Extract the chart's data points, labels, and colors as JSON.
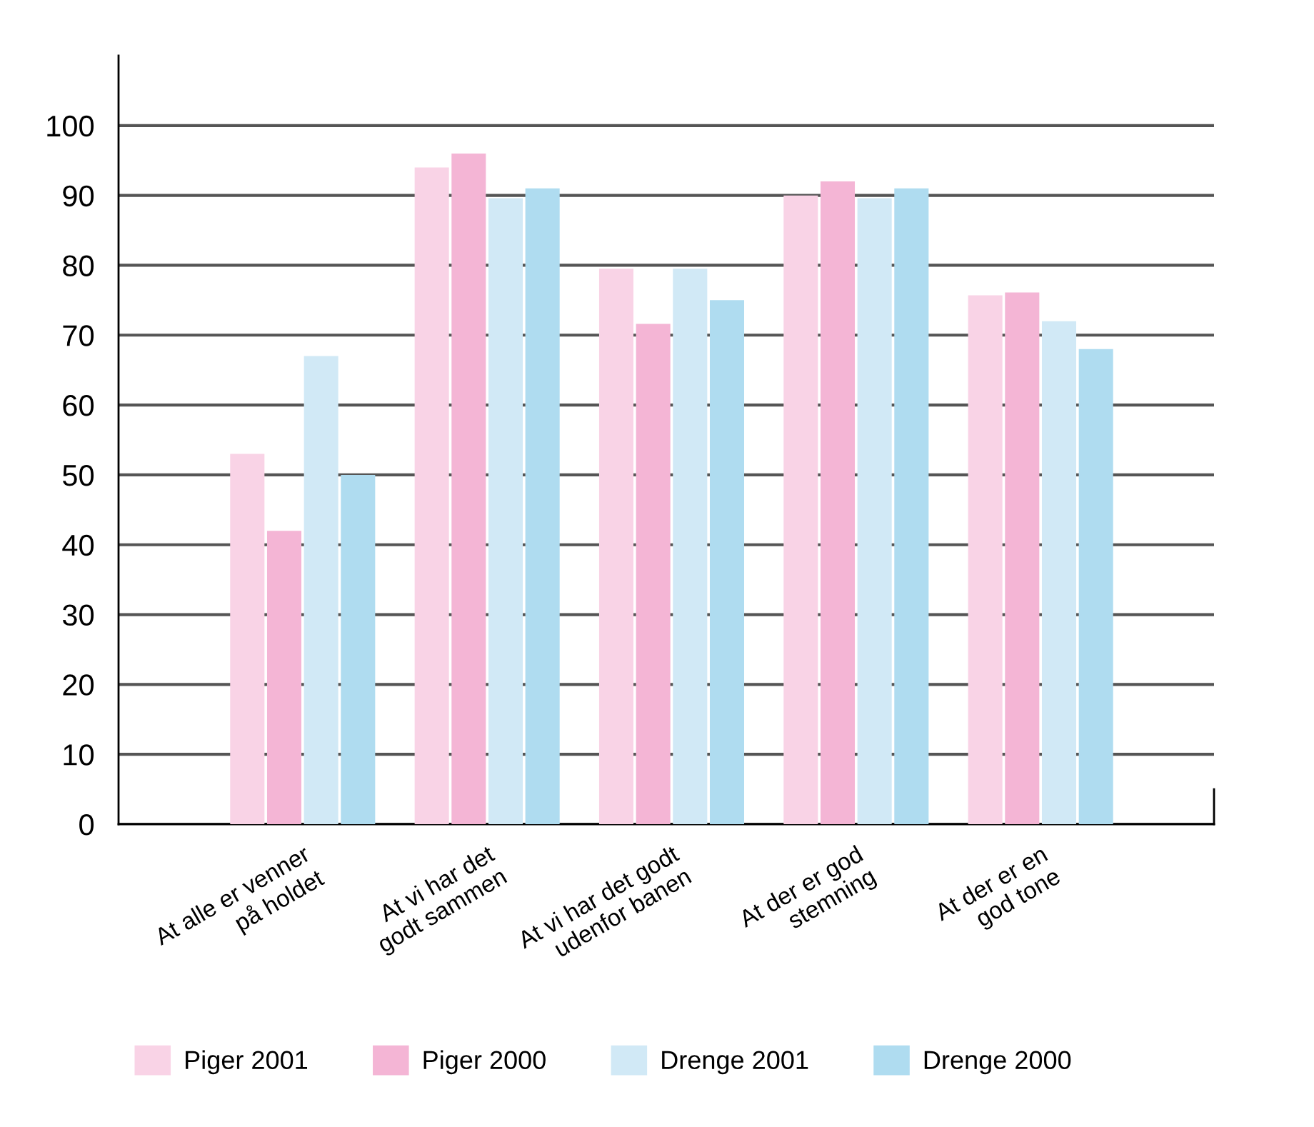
{
  "chart_data": {
    "type": "bar",
    "categories": [
      "At alle er venner\npå holdet",
      "At vi har det\ngodt sammen",
      "At vi har det godt\nudenfor banen",
      "At der er god\nstemning",
      "At der er en\ngod tone"
    ],
    "series": [
      {
        "name": "Piger 2001",
        "color": "#f9d3e6",
        "values": [
          53,
          94,
          79.5,
          90,
          75.7
        ]
      },
      {
        "name": "Piger 2000",
        "color": "#f4b5d5",
        "values": [
          42,
          96,
          71.6,
          92,
          76.1
        ]
      },
      {
        "name": "Drenge 2001",
        "color": "#d1e9f6",
        "values": [
          67,
          89.6,
          79.5,
          89.6,
          72
        ]
      },
      {
        "name": "Drenge 2000",
        "color": "#afdcf0",
        "values": [
          50,
          91,
          75,
          91,
          68
        ]
      }
    ],
    "ylim": [
      0,
      110
    ],
    "yticks": [
      0,
      10,
      20,
      30,
      40,
      50,
      60,
      70,
      80,
      90,
      100
    ],
    "grid": "y",
    "legend": "bottom"
  }
}
